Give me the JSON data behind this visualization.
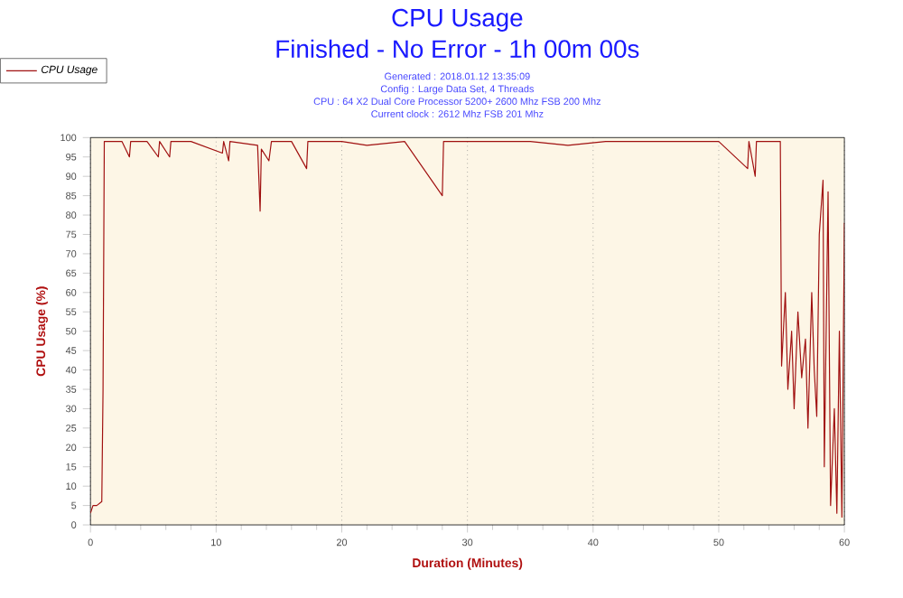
{
  "chart_data": {
    "type": "line",
    "title": "CPU Usage",
    "subtitle": "Finished - No Error - 1h 00m 00s",
    "annotations": [
      "Generated : 2018.01.12 13:35:09",
      "Config : Large Data Set, 4 Threads",
      "CPU : 64 X2 Dual Core Processor 5200+ 2600 Mhz FSB 200 Mhz",
      "Current clock : 2612 Mhz FSB 201 Mhz"
    ],
    "xlabel": "Duration (Minutes)",
    "ylabel": "CPU Usage (%)",
    "xlim": [
      0,
      60
    ],
    "ylim": [
      0,
      100
    ],
    "xticks": [
      0,
      10,
      20,
      30,
      40,
      50,
      60
    ],
    "yticks": [
      0,
      5,
      10,
      15,
      20,
      25,
      30,
      35,
      40,
      45,
      50,
      55,
      60,
      65,
      70,
      75,
      80,
      85,
      90,
      95,
      100
    ],
    "grid": "x",
    "legend": "top left",
    "series": [
      {
        "name": "CPU Usage",
        "color": "#a01010",
        "x": [
          0,
          0.2,
          0.5,
          0.9,
          1.0,
          1.1,
          1.5,
          2.5,
          3.1,
          3.2,
          4.5,
          5.4,
          5.5,
          6.3,
          6.4,
          8,
          10.5,
          10.6,
          11,
          11.1,
          13.3,
          13.5,
          13.6,
          14.2,
          14.4,
          16,
          17.2,
          17.3,
          20,
          22,
          25,
          28.0,
          28.1,
          31,
          35,
          38,
          41,
          44,
          47,
          50,
          52.3,
          52.4,
          52.9,
          53.0,
          54.9,
          55.0,
          55.3,
          55.5,
          55.8,
          56.0,
          56.3,
          56.6,
          56.9,
          57.1,
          57.4,
          57.6,
          57.8,
          58.0,
          58.3,
          58.4,
          58.7,
          58.9,
          59.2,
          59.4,
          59.6,
          59.8,
          60
        ],
        "values": [
          3,
          5,
          5,
          6,
          35,
          99,
          99,
          99,
          95,
          99,
          99,
          95,
          99,
          95,
          99,
          99,
          96,
          99,
          94,
          99,
          98,
          81,
          97,
          94,
          99,
          99,
          92,
          99,
          99,
          98,
          99,
          85,
          99,
          99,
          99,
          98,
          99,
          99,
          99,
          99,
          92,
          99,
          90,
          99,
          99,
          41,
          60,
          35,
          50,
          30,
          55,
          38,
          48,
          25,
          60,
          40,
          28,
          75,
          89,
          15,
          86,
          5,
          30,
          3,
          50,
          2,
          78
        ]
      }
    ]
  }
}
